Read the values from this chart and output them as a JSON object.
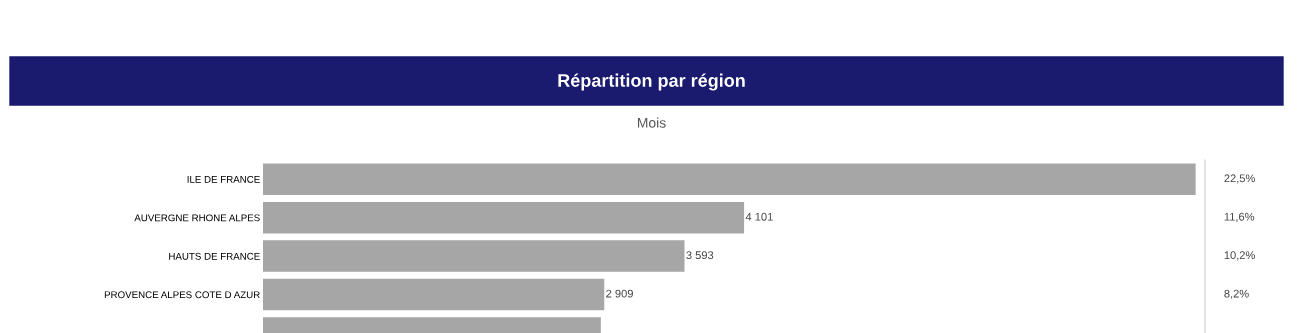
{
  "chart_data": {
    "type": "bar",
    "orientation": "horizontal",
    "title": "Répartition par région",
    "subtitle": "Mois",
    "categories": [
      "ILE DE FRANCE",
      "AUVERGNE RHONE ALPES",
      "HAUTS DE FRANCE",
      "PROVENCE ALPES COTE D AZUR",
      null
    ],
    "values": [
      7950,
      4101,
      3593,
      2909,
      2880
    ],
    "value_labels": [
      null,
      "4 101",
      "3 593",
      "2 909",
      null
    ],
    "color": "#a6a6a6",
    "xlim": [
      0,
      8030
    ],
    "grid": false,
    "legend": false,
    "annotations": [
      "22,5%",
      "11,6%",
      "10,2%",
      "8,2%"
    ]
  }
}
